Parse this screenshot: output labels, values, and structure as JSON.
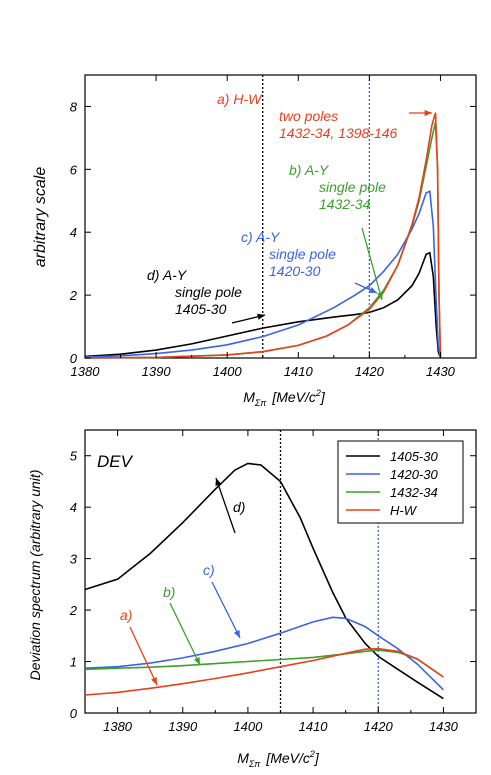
{
  "chart_data": [
    {
      "type": "line",
      "xlabel": "M_Σπ  [MeV/c²]",
      "xlabel_main": "M",
      "xlabel_sub": "Σπ",
      "xlabel_unit": "[MeV/c",
      "xlabel_sup": "2",
      "xlabel_close": "]",
      "ylabel": "arbitrary scale",
      "xlim": [
        1380,
        1435
      ],
      "ylim": [
        0,
        9
      ],
      "xticks": [
        "1380",
        "1390",
        "1400",
        "1410",
        "1420",
        "1430"
      ],
      "yticks": [
        "0",
        "2",
        "4",
        "6",
        "8"
      ],
      "vlines": [
        1405,
        1420
      ],
      "annotations": [
        {
          "id": "a",
          "lines": [
            "a)  H-W",
            "two poles",
            "1432-34, 1398-146"
          ],
          "color": "#e8401c"
        },
        {
          "id": "b",
          "lines": [
            "b)  A-Y",
            "single pole",
            "1432-34"
          ],
          "color": "#3aa12a"
        },
        {
          "id": "c",
          "lines": [
            "c)  A-Y",
            "single pole",
            "1420-30"
          ],
          "color": "#3b63e8"
        },
        {
          "id": "d",
          "lines": [
            "d)  A-Y",
            "single pole",
            "1405-30"
          ],
          "color": "#000000"
        }
      ],
      "series": [
        {
          "id": "1405-30",
          "color": "#000000",
          "x": [
            1380,
            1385,
            1390,
            1395,
            1400,
            1405,
            1410,
            1415,
            1418,
            1420,
            1422,
            1424,
            1426,
            1427,
            1428,
            1428.5,
            1429,
            1429.4,
            1429.7,
            1430
          ],
          "y": [
            0.05,
            0.12,
            0.25,
            0.45,
            0.7,
            0.95,
            1.15,
            1.3,
            1.38,
            1.45,
            1.6,
            1.85,
            2.3,
            2.7,
            3.3,
            3.35,
            2.6,
            1.0,
            0.2,
            0
          ]
        },
        {
          "id": "1420-30",
          "color": "#3b63e8",
          "x": [
            1380,
            1385,
            1390,
            1395,
            1400,
            1405,
            1410,
            1415,
            1418,
            1420,
            1422,
            1424,
            1426,
            1427,
            1428,
            1428.5,
            1429,
            1429.4,
            1429.7,
            1430
          ],
          "y": [
            0.03,
            0.07,
            0.14,
            0.25,
            0.42,
            0.68,
            1.05,
            1.6,
            2.0,
            2.3,
            2.75,
            3.3,
            4.1,
            4.6,
            5.25,
            5.3,
            4.2,
            1.8,
            0.4,
            0
          ]
        },
        {
          "id": "1432-34",
          "color": "#3aa12a",
          "x": [
            1380,
            1390,
            1400,
            1405,
            1410,
            1414,
            1417,
            1420,
            1422,
            1424,
            1426,
            1427,
            1428,
            1428.8,
            1429.3,
            1429.6,
            1429.8,
            1430
          ],
          "y": [
            0,
            0.02,
            0.1,
            0.2,
            0.4,
            0.7,
            1.05,
            1.6,
            2.15,
            2.95,
            4.2,
            5.0,
            6.1,
            7.0,
            7.5,
            6.0,
            2.0,
            0
          ]
        },
        {
          "id": "H-W",
          "color": "#e8401c",
          "x": [
            1380,
            1390,
            1400,
            1405,
            1410,
            1414,
            1417,
            1420,
            1422,
            1424,
            1426,
            1427,
            1428,
            1428.8,
            1429.3,
            1429.6,
            1429.8,
            1430
          ],
          "y": [
            0,
            0.02,
            0.1,
            0.2,
            0.4,
            0.7,
            1.05,
            1.55,
            2.1,
            2.95,
            4.25,
            5.1,
            6.3,
            7.4,
            7.8,
            6.0,
            2.0,
            0
          ]
        }
      ]
    },
    {
      "type": "line",
      "title": "DEV",
      "xlabel": "M_Σπ  [MeV/c²]",
      "xlabel_main": "M",
      "xlabel_sub": "Σπ",
      "xlabel_unit": "[MeV/c",
      "xlabel_sup": "2",
      "xlabel_close": "]",
      "ylabel": "Deviation spectrum  (arbitrary unit)",
      "xlim": [
        1375,
        1435
      ],
      "ylim": [
        0,
        5.5
      ],
      "xticks": [
        "1380",
        "1390",
        "1400",
        "1410",
        "1420",
        "1430"
      ],
      "yticks": [
        "0",
        "1",
        "2",
        "3",
        "4",
        "5"
      ],
      "vlines": [
        1405,
        1420
      ],
      "legend": {
        "position": "top-right",
        "entries": [
          "1405-30",
          "1420-30",
          "1432-34",
          "H-W"
        ]
      },
      "annotations": [
        {
          "id": "a",
          "label": "a)",
          "color": "#e8401c"
        },
        {
          "id": "b",
          "label": "b)",
          "color": "#3aa12a"
        },
        {
          "id": "c",
          "label": "c)",
          "color": "#3b63e8"
        },
        {
          "id": "d",
          "label": "d)",
          "color": "#000000"
        }
      ],
      "series": [
        {
          "id": "1405-30",
          "color": "#000000",
          "x": [
            1375,
            1380,
            1385,
            1390,
            1395,
            1398,
            1400,
            1402,
            1405,
            1408,
            1410,
            1413,
            1415,
            1418,
            1420,
            1423,
            1426,
            1430
          ],
          "y": [
            2.4,
            2.6,
            3.1,
            3.7,
            4.35,
            4.72,
            4.85,
            4.82,
            4.5,
            3.8,
            3.2,
            2.35,
            1.85,
            1.35,
            1.1,
            0.85,
            0.6,
            0.28
          ]
        },
        {
          "id": "1420-30",
          "color": "#3b63e8",
          "x": [
            1375,
            1380,
            1385,
            1390,
            1395,
            1400,
            1405,
            1410,
            1413,
            1415,
            1418,
            1420,
            1423,
            1426,
            1430
          ],
          "y": [
            0.87,
            0.9,
            0.97,
            1.07,
            1.2,
            1.35,
            1.55,
            1.77,
            1.86,
            1.84,
            1.68,
            1.5,
            1.25,
            0.95,
            0.45
          ]
        },
        {
          "id": "1432-34",
          "color": "#3aa12a",
          "x": [
            1375,
            1380,
            1385,
            1390,
            1395,
            1400,
            1405,
            1410,
            1415,
            1418,
            1420,
            1423,
            1426,
            1430
          ],
          "y": [
            0.85,
            0.87,
            0.89,
            0.92,
            0.96,
            1.0,
            1.04,
            1.08,
            1.15,
            1.2,
            1.22,
            1.18,
            1.05,
            0.7
          ]
        },
        {
          "id": "H-W",
          "color": "#e8401c",
          "x": [
            1375,
            1380,
            1385,
            1390,
            1395,
            1400,
            1405,
            1410,
            1415,
            1418,
            1420,
            1423,
            1426,
            1430
          ],
          "y": [
            0.35,
            0.4,
            0.48,
            0.57,
            0.67,
            0.78,
            0.9,
            1.02,
            1.16,
            1.24,
            1.25,
            1.2,
            1.05,
            0.7
          ]
        }
      ]
    }
  ]
}
